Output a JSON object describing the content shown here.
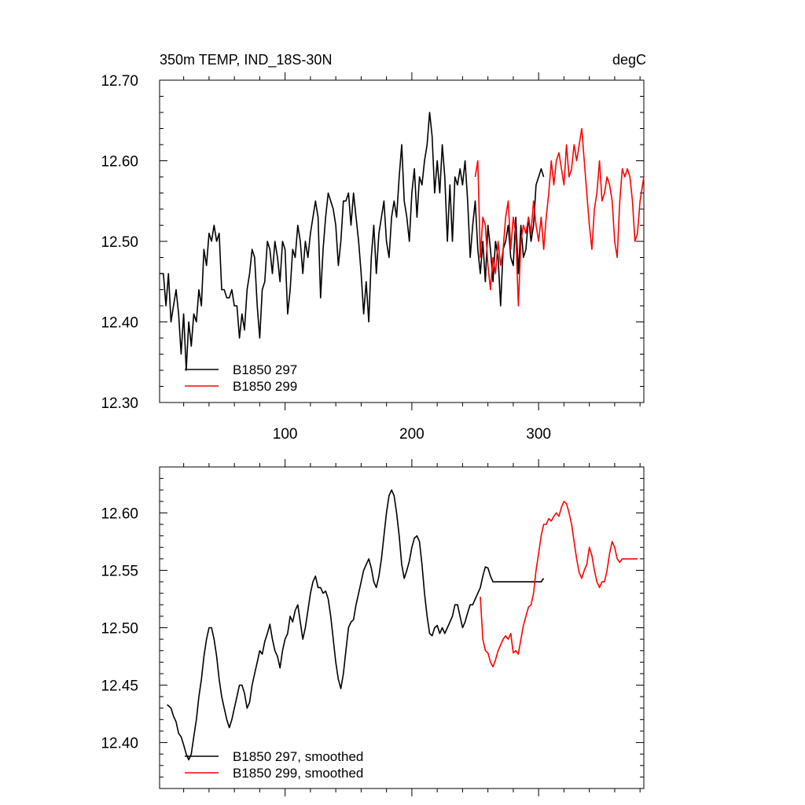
{
  "chart_data": [
    {
      "type": "line",
      "title_left": "350m TEMP, IND_18S-30N",
      "title_right": "degC",
      "xlim": [
        1,
        383
      ],
      "ylim": [
        12.3,
        12.7
      ],
      "x_ticks": [
        100,
        200,
        300
      ],
      "x_ticklabels": [
        "100",
        "200",
        "300"
      ],
      "y_ticks": [
        12.3,
        12.4,
        12.5,
        12.6,
        12.7
      ],
      "y_ticklabels": [
        "12.30",
        "12.40",
        "12.50",
        "12.60",
        "12.70"
      ],
      "legend_position": "bottom-left",
      "colors": {
        "B1850 297": "#000000",
        "B1850 299": "#ff0000"
      },
      "series": [
        {
          "name": "B1850 297",
          "color": "#000000",
          "x": [
            1,
            4,
            6,
            8,
            10,
            12,
            14,
            16,
            18,
            20,
            22,
            24,
            26,
            28,
            30,
            32,
            34,
            36,
            38,
            40,
            42,
            44,
            46,
            48,
            50,
            52,
            54,
            56,
            58,
            60,
            62,
            64,
            66,
            68,
            70,
            72,
            74,
            76,
            78,
            80,
            82,
            84,
            86,
            88,
            90,
            92,
            94,
            96,
            98,
            100,
            102,
            104,
            106,
            108,
            110,
            112,
            114,
            116,
            118,
            120,
            122,
            124,
            126,
            128,
            130,
            132,
            134,
            136,
            138,
            140,
            142,
            144,
            146,
            148,
            150,
            152,
            154,
            156,
            158,
            160,
            162,
            164,
            166,
            168,
            170,
            172,
            174,
            176,
            178,
            180,
            182,
            184,
            186,
            188,
            190,
            192,
            194,
            196,
            198,
            200,
            202,
            204,
            206,
            208,
            210,
            212,
            214,
            216,
            218,
            220,
            222,
            224,
            226,
            228,
            230,
            232,
            234,
            236,
            238,
            240,
            242,
            244,
            246,
            248,
            250,
            252,
            254,
            256,
            258,
            260,
            262,
            264,
            266,
            268,
            270,
            272,
            274,
            276,
            278,
            280,
            282,
            284,
            286,
            288,
            290,
            292,
            294,
            296,
            298,
            300,
            302,
            304
          ],
          "y": [
            12.46,
            12.46,
            12.42,
            12.46,
            12.4,
            12.42,
            12.44,
            12.41,
            12.36,
            12.41,
            12.34,
            12.4,
            12.37,
            12.41,
            12.4,
            12.44,
            12.42,
            12.49,
            12.47,
            12.51,
            12.5,
            12.52,
            12.5,
            12.51,
            12.44,
            12.44,
            12.43,
            12.43,
            12.44,
            12.42,
            12.42,
            12.38,
            12.41,
            12.39,
            12.44,
            12.46,
            12.49,
            12.48,
            12.42,
            12.38,
            12.44,
            12.45,
            12.5,
            12.49,
            12.46,
            12.5,
            12.48,
            12.45,
            12.5,
            12.49,
            12.41,
            12.44,
            12.49,
            12.48,
            12.52,
            12.5,
            12.46,
            12.5,
            12.48,
            12.51,
            12.53,
            12.55,
            12.53,
            12.43,
            12.49,
            12.53,
            12.56,
            12.55,
            12.54,
            12.52,
            12.47,
            12.5,
            12.55,
            12.55,
            12.56,
            12.52,
            12.56,
            12.53,
            12.5,
            12.46,
            12.41,
            12.45,
            12.4,
            12.48,
            12.52,
            12.46,
            12.51,
            12.53,
            12.55,
            12.5,
            12.48,
            12.53,
            12.55,
            12.53,
            12.58,
            12.62,
            12.55,
            12.53,
            12.5,
            12.56,
            12.59,
            12.53,
            12.58,
            12.57,
            12.6,
            12.62,
            12.66,
            12.63,
            12.56,
            12.6,
            12.56,
            12.62,
            12.58,
            12.5,
            12.57,
            12.5,
            12.58,
            12.57,
            12.59,
            12.57,
            12.6,
            12.55,
            12.48,
            12.52,
            12.55,
            12.49,
            12.46,
            12.5,
            12.45,
            12.52,
            12.49,
            12.45,
            12.5,
            12.48,
            12.42,
            12.49,
            12.5,
            12.52,
            12.48,
            12.47,
            12.53,
            12.46,
            12.52,
            12.48,
            12.49,
            12.53,
            12.5,
            12.52,
            12.57,
            12.58,
            12.59,
            12.58
          ]
        },
        {
          "name": "B1850 299",
          "color": "#ff0000",
          "x": [
            250,
            252,
            254,
            256,
            258,
            260,
            262,
            264,
            266,
            268,
            270,
            272,
            274,
            276,
            278,
            280,
            282,
            284,
            286,
            288,
            290,
            292,
            294,
            296,
            298,
            300,
            302,
            304,
            306,
            308,
            310,
            312,
            314,
            316,
            318,
            320,
            322,
            324,
            326,
            328,
            330,
            332,
            334,
            336,
            338,
            340,
            342,
            344,
            346,
            348,
            350,
            352,
            354,
            356,
            358,
            360,
            362,
            364,
            366,
            368,
            370,
            372,
            374,
            376,
            378,
            380,
            383
          ],
          "y": [
            12.58,
            12.6,
            12.48,
            12.53,
            12.52,
            12.47,
            12.44,
            12.48,
            12.46,
            12.5,
            12.47,
            12.49,
            12.53,
            12.55,
            12.49,
            12.53,
            12.51,
            12.42,
            12.5,
            12.52,
            12.51,
            12.53,
            12.51,
            12.55,
            12.52,
            12.5,
            12.53,
            12.49,
            12.53,
            12.56,
            12.6,
            12.57,
            12.6,
            12.61,
            12.59,
            12.57,
            12.62,
            12.58,
            12.59,
            12.62,
            12.6,
            12.62,
            12.64,
            12.6,
            12.56,
            12.52,
            12.49,
            12.54,
            12.56,
            12.6,
            12.55,
            12.56,
            12.58,
            12.57,
            12.55,
            12.5,
            12.48,
            12.55,
            12.59,
            12.58,
            12.59,
            12.58,
            12.55,
            12.5,
            12.51,
            12.55,
            12.58
          ]
        }
      ]
    },
    {
      "type": "line",
      "xlim": [
        1,
        383
      ],
      "ylim": [
        12.36,
        12.64
      ],
      "x_ticks": [
        100,
        200,
        300
      ],
      "y_ticks": [
        12.4,
        12.45,
        12.5,
        12.55,
        12.6
      ],
      "y_ticklabels": [
        "12.40",
        "12.45",
        "12.50",
        "12.55",
        "12.60"
      ],
      "legend_position": "bottom-left",
      "colors": {
        "B1850 297, smoothed": "#000000",
        "B1850 299, smoothed": "#ff0000"
      },
      "series": [
        {
          "name": "B1850 297, smoothed",
          "color": "#000000",
          "x": [
            7,
            10,
            12,
            14,
            16,
            18,
            20,
            22,
            24,
            26,
            28,
            30,
            32,
            34,
            36,
            38,
            40,
            42,
            44,
            46,
            48,
            50,
            52,
            54,
            56,
            58,
            60,
            62,
            64,
            66,
            68,
            70,
            72,
            74,
            76,
            78,
            80,
            82,
            84,
            86,
            88,
            90,
            92,
            94,
            96,
            98,
            100,
            102,
            104,
            106,
            108,
            110,
            112,
            114,
            116,
            118,
            120,
            122,
            124,
            126,
            128,
            130,
            132,
            134,
            136,
            138,
            140,
            142,
            144,
            146,
            148,
            150,
            152,
            154,
            156,
            158,
            160,
            162,
            164,
            166,
            168,
            170,
            172,
            174,
            176,
            178,
            180,
            182,
            184,
            186,
            188,
            190,
            192,
            194,
            196,
            198,
            200,
            202,
            204,
            206,
            208,
            210,
            212,
            214,
            216,
            218,
            220,
            222,
            224,
            226,
            228,
            230,
            232,
            234,
            236,
            238,
            240,
            242,
            244,
            246,
            248,
            250,
            252,
            254,
            256,
            258,
            260,
            262,
            264,
            266,
            268,
            270,
            272,
            274,
            276,
            278,
            280,
            282,
            284,
            286,
            288,
            290,
            292,
            294,
            296,
            298,
            300,
            302,
            304
          ],
          "y": [
            12.433,
            12.43,
            12.423,
            12.418,
            12.408,
            12.405,
            12.398,
            12.39,
            12.385,
            12.39,
            12.405,
            12.42,
            12.44,
            12.455,
            12.475,
            12.49,
            12.5,
            12.5,
            12.49,
            12.475,
            12.455,
            12.44,
            12.43,
            12.42,
            12.413,
            12.42,
            12.43,
            12.44,
            12.45,
            12.45,
            12.443,
            12.43,
            12.435,
            12.45,
            12.46,
            12.47,
            12.48,
            12.477,
            12.488,
            12.495,
            12.503,
            12.49,
            12.48,
            12.475,
            12.465,
            12.48,
            12.49,
            12.495,
            12.51,
            12.505,
            12.515,
            12.52,
            12.505,
            12.49,
            12.5,
            12.515,
            12.53,
            12.54,
            12.545,
            12.535,
            12.535,
            12.53,
            12.532,
            12.525,
            12.51,
            12.49,
            12.47,
            12.455,
            12.447,
            12.46,
            12.48,
            12.5,
            12.505,
            12.507,
            12.52,
            12.53,
            12.54,
            12.55,
            12.555,
            12.56,
            12.552,
            12.54,
            12.535,
            12.545,
            12.56,
            12.58,
            12.6,
            12.615,
            12.62,
            12.615,
            12.6,
            12.58,
            12.555,
            12.543,
            12.55,
            12.558,
            12.57,
            12.578,
            12.58,
            12.575,
            12.555,
            12.53,
            12.51,
            12.495,
            12.493,
            12.5,
            12.502,
            12.495,
            12.5,
            12.495,
            12.5,
            12.505,
            12.51,
            12.52,
            12.52,
            12.51,
            12.5,
            12.505,
            12.513,
            12.52,
            12.52,
            12.525,
            12.53,
            12.535,
            12.545,
            12.553,
            12.552,
            12.545,
            12.54,
            12.54,
            12.54,
            12.54,
            12.54,
            12.54,
            12.54,
            12.54,
            12.54,
            12.54,
            12.54,
            12.54,
            12.54,
            12.54,
            12.54,
            12.54,
            12.54,
            12.54,
            12.54,
            12.54,
            12.543
          ]
        },
        {
          "name": "B1850 299, smoothed",
          "color": "#ff0000",
          "x": [
            254,
            256,
            258,
            260,
            262,
            264,
            266,
            268,
            270,
            272,
            274,
            276,
            278,
            280,
            282,
            284,
            286,
            288,
            290,
            292,
            294,
            296,
            298,
            300,
            302,
            304,
            306,
            308,
            310,
            312,
            314,
            316,
            318,
            320,
            322,
            324,
            326,
            328,
            330,
            332,
            334,
            336,
            338,
            340,
            342,
            344,
            346,
            348,
            350,
            352,
            354,
            356,
            358,
            360,
            362,
            364,
            366,
            368,
            370,
            372,
            374,
            376,
            378
          ],
          "y": [
            12.527,
            12.49,
            12.48,
            12.478,
            12.47,
            12.466,
            12.472,
            12.48,
            12.485,
            12.49,
            12.493,
            12.49,
            12.495,
            12.478,
            12.48,
            12.477,
            12.49,
            12.502,
            12.51,
            12.518,
            12.52,
            12.53,
            12.55,
            12.565,
            12.58,
            12.59,
            12.59,
            12.595,
            12.593,
            12.597,
            12.6,
            12.597,
            12.605,
            12.61,
            12.608,
            12.6,
            12.59,
            12.575,
            12.56,
            12.548,
            12.543,
            12.55,
            12.555,
            12.57,
            12.563,
            12.55,
            12.54,
            12.535,
            12.54,
            12.54,
            12.55,
            12.565,
            12.575,
            12.57,
            12.56,
            12.557,
            12.56,
            12.56,
            12.56,
            12.56,
            12.56,
            12.56,
            12.56
          ]
        }
      ]
    }
  ]
}
